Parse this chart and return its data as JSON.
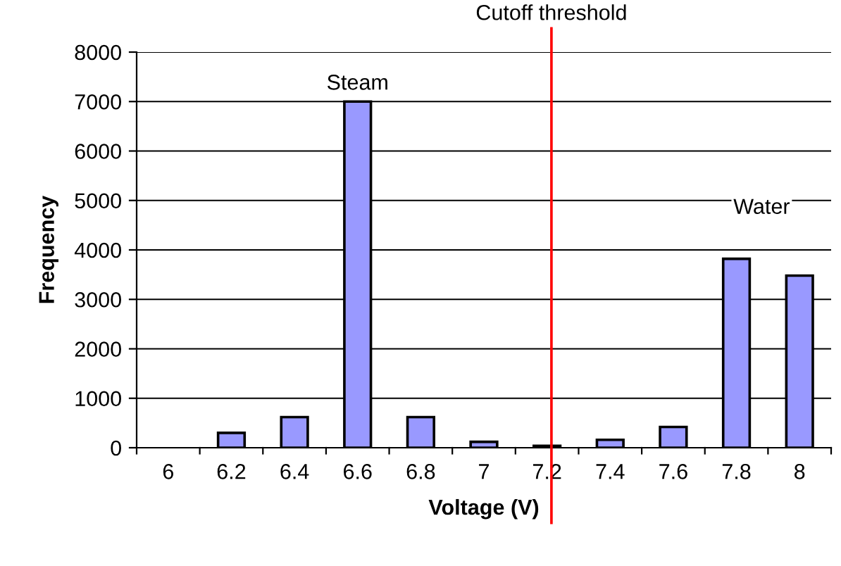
{
  "chart_data": {
    "type": "bar",
    "xlabel": "Voltage (V)",
    "ylabel": "Frequency",
    "categories": [
      "6",
      "6.2",
      "6.4",
      "6.6",
      "6.8",
      "7",
      "7.2",
      "7.4",
      "7.6",
      "7.8",
      "8"
    ],
    "values": [
      0,
      300,
      620,
      7000,
      620,
      120,
      40,
      160,
      420,
      3820,
      3480
    ],
    "color": "#9999ff",
    "ylim": [
      0,
      8000
    ],
    "yticks": [
      0,
      1000,
      2000,
      3000,
      4000,
      5000,
      6000,
      7000,
      8000
    ],
    "grid": "y",
    "ref_lines": [
      {
        "axis": "x",
        "value": "7.2",
        "label": "Cutoff threshold",
        "color": "#ff0000"
      }
    ],
    "annotations": [
      {
        "text": "Steam",
        "x": "6.6",
        "y": 7000
      },
      "Water"
    ]
  }
}
